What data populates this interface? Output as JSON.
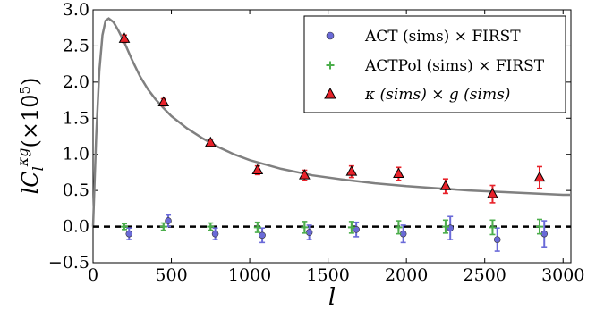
{
  "chart_data": {
    "type": "scatter",
    "xlabel": "l",
    "ylabel": "lC_l^{κg}(×10^5)",
    "xlim": [
      0,
      3050
    ],
    "ylim": [
      -0.5,
      3.0
    ],
    "xticks": [
      "0",
      "500",
      "1000",
      "1500",
      "2000",
      "2500",
      "3000"
    ],
    "xtick_values": [
      0,
      500,
      1000,
      1500,
      2000,
      2500,
      3000
    ],
    "yticks": [
      "−0.5",
      "0.0",
      "0.5",
      "1.0",
      "1.5",
      "2.0",
      "2.5",
      "3.0"
    ],
    "ytick_values": [
      -0.5,
      0.0,
      0.5,
      1.0,
      1.5,
      2.0,
      2.5,
      3.0
    ],
    "grid": false,
    "legend_position": "top-right",
    "zero_line": {
      "y": 0,
      "style": "dashed",
      "color": "#000000"
    },
    "series": [
      {
        "name": "ACT (sims) × FIRST",
        "marker": "circle",
        "color": "#6a6ad8",
        "edge": "#333333",
        "x": [
          230,
          480,
          780,
          1080,
          1380,
          1680,
          1980,
          2280,
          2580,
          2880
        ],
        "y": [
          -0.1,
          0.08,
          -0.1,
          -0.12,
          -0.08,
          -0.04,
          -0.1,
          -0.02,
          -0.18,
          -0.1
        ],
        "err": [
          0.08,
          0.08,
          0.08,
          0.1,
          0.1,
          0.1,
          0.12,
          0.16,
          0.16,
          0.18
        ]
      },
      {
        "name": "ACTPol (sims) × FIRST",
        "marker": "plus",
        "color": "#4cae4c",
        "x": [
          200,
          450,
          750,
          1050,
          1350,
          1650,
          1950,
          2250,
          2550,
          2850
        ],
        "y": [
          0.0,
          0.0,
          0.0,
          -0.01,
          -0.01,
          -0.01,
          -0.01,
          0.0,
          -0.01,
          0.0
        ],
        "err": [
          0.04,
          0.05,
          0.05,
          0.07,
          0.08,
          0.08,
          0.09,
          0.09,
          0.1,
          0.1
        ]
      },
      {
        "name": "κ (sims) × g (sims)",
        "marker": "triangle",
        "color": "#e8222a",
        "edge": "#000000",
        "x": [
          200,
          450,
          750,
          1050,
          1350,
          1650,
          1950,
          2250,
          2550,
          2850
        ],
        "y": [
          2.6,
          1.72,
          1.16,
          0.78,
          0.71,
          0.76,
          0.73,
          0.56,
          0.45,
          0.68
        ],
        "err": [
          0.05,
          0.05,
          0.05,
          0.06,
          0.07,
          0.08,
          0.09,
          0.1,
          0.12,
          0.15
        ]
      }
    ],
    "theory_curve": {
      "color": "#808080",
      "x": [
        0,
        20,
        40,
        60,
        80,
        100,
        130,
        160,
        200,
        250,
        300,
        350,
        400,
        450,
        500,
        600,
        700,
        800,
        900,
        1000,
        1200,
        1400,
        1600,
        1800,
        2000,
        2200,
        2400,
        2600,
        2800,
        3000,
        3050
      ],
      "y": [
        0.0,
        1.25,
        2.15,
        2.65,
        2.85,
        2.88,
        2.83,
        2.72,
        2.55,
        2.3,
        2.08,
        1.9,
        1.76,
        1.64,
        1.53,
        1.36,
        1.22,
        1.1,
        1.0,
        0.92,
        0.8,
        0.71,
        0.65,
        0.6,
        0.56,
        0.53,
        0.5,
        0.48,
        0.46,
        0.44,
        0.44
      ]
    }
  }
}
